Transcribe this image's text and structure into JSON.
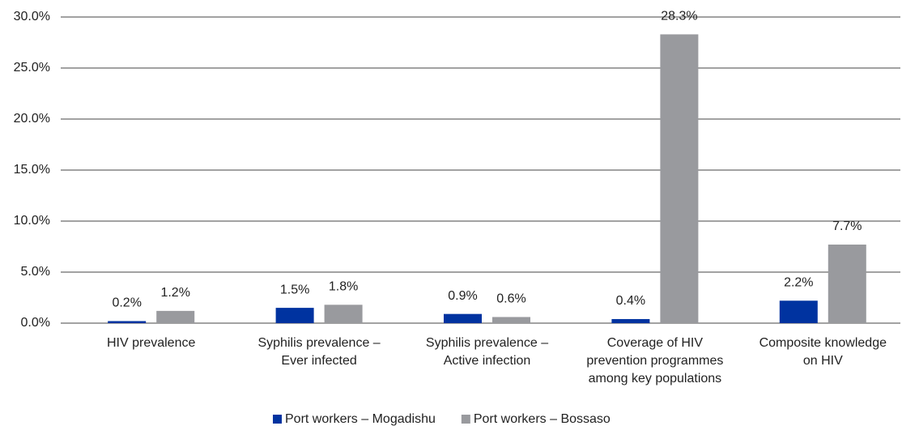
{
  "chart_data": {
    "type": "bar",
    "categories": [
      "HIV prevalence",
      "Syphilis prevalence  –\nEver infected",
      "Syphilis prevalence  –\nActive infection",
      "Coverage of HIV\nprevention programmes\namong key populations",
      "Composite knowledge\non HIV"
    ],
    "series": [
      {
        "name": "Port workers  – Mogadishu",
        "color": "#0033a0",
        "values": [
          0.2,
          1.5,
          0.9,
          0.4,
          2.2
        ],
        "value_labels": [
          "0.2%",
          "1.5%",
          "0.9%",
          "0.4%",
          "2.2%"
        ]
      },
      {
        "name": "Port workers – Bossaso",
        "color": "#999a9e",
        "values": [
          1.2,
          1.8,
          0.6,
          28.3,
          7.7
        ],
        "value_labels": [
          "1.2%",
          "1.8%",
          "0.6%",
          "28.3%",
          "7.7%"
        ]
      }
    ],
    "ylim": [
      0,
      30
    ],
    "yticks": [
      {
        "value": 0,
        "label": "0.0%"
      },
      {
        "value": 5,
        "label": "5.0%"
      },
      {
        "value": 10,
        "label": "10.0%"
      },
      {
        "value": 15,
        "label": "15.0%"
      },
      {
        "value": 20,
        "label": "20.0%"
      },
      {
        "value": 25,
        "label": "25.0%"
      },
      {
        "value": 30,
        "label": "30.0%"
      }
    ],
    "grid": true,
    "legend": "bottom"
  }
}
